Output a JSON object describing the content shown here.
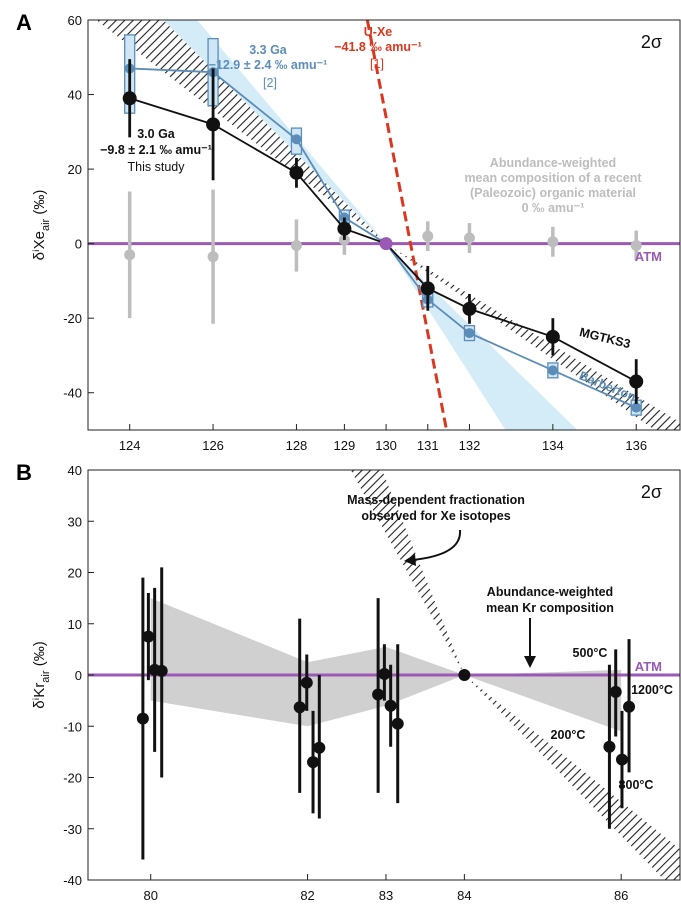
{
  "chart_data": [
    {
      "panel": "A",
      "type": "line",
      "significance": "2σ",
      "ylabel": "δⁱXe",
      "ylabel_sub": "air",
      "ylabel_unit": "(‰)",
      "xlim": [
        123,
        137.2
      ],
      "ylim": [
        -50,
        60
      ],
      "x_ticks": [
        124,
        126,
        128,
        129,
        130,
        131,
        132,
        134,
        136
      ],
      "y_ticks": [
        60,
        40,
        20,
        0,
        -20,
        -40
      ],
      "x_positions": {
        "124": 124,
        "126": 126,
        "128": 128,
        "129": 129.15,
        "130": 130.15,
        "131": 131.15,
        "132": 132.15,
        "134": 134.15,
        "136": 136.15
      },
      "grid": false,
      "colors": {
        "black": "#111111",
        "blue": "#5b8db8",
        "gray": "#bdbdbd",
        "purple": "#9b59b6",
        "red": "#d9371e",
        "blue_band": "#cde8f7"
      },
      "series": [
        {
          "name": "MGTKS3",
          "color": "#111111",
          "points": [
            {
              "x": "124",
              "y": 39,
              "err": 10.5
            },
            {
              "x": "126",
              "y": 32,
              "err": 15
            },
            {
              "x": "128",
              "y": 19,
              "err": 4
            },
            {
              "x": "129",
              "y": 4,
              "err": 3
            },
            {
              "x": "130",
              "y": 0,
              "err": 0
            },
            {
              "x": "131",
              "y": -12,
              "err": 6
            },
            {
              "x": "132",
              "y": -17.5,
              "err": 4
            },
            {
              "x": "134",
              "y": -25,
              "err": 5
            },
            {
              "x": "136",
              "y": -37,
              "err": 6
            }
          ]
        },
        {
          "name": "Barberton",
          "color": "#5b8db8",
          "points": [
            {
              "x": "124",
              "y": 47,
              "box": [
                35,
                56
              ]
            },
            {
              "x": "126",
              "y": 46,
              "box": [
                37,
                55
              ]
            },
            {
              "x": "128",
              "y": 28,
              "box": [
                24,
                31
              ]
            },
            {
              "x": "129",
              "y": 7,
              "box": [
                5.5,
                9
              ]
            },
            {
              "x": "130",
              "y": 0,
              "box": [
                0,
                0
              ]
            },
            {
              "x": "131",
              "y": -15,
              "box": [
                -17,
                -13
              ]
            },
            {
              "x": "132",
              "y": -24,
              "box": [
                -26,
                -22
              ]
            },
            {
              "x": "134",
              "y": -34,
              "box": [
                -36,
                -32
              ]
            },
            {
              "x": "136",
              "y": -44,
              "box": [
                -46,
                -42
              ]
            }
          ]
        },
        {
          "name": "organic",
          "color": "#bdbdbd",
          "points": [
            {
              "x": "124",
              "y": -3,
              "err": 17
            },
            {
              "x": "126",
              "y": -3.5,
              "err": 18
            },
            {
              "x": "128",
              "y": -0.5,
              "err": 7
            },
            {
              "x": "129",
              "y": 1,
              "err": 4
            },
            {
              "x": "131",
              "y": 2,
              "err": 4
            },
            {
              "x": "132",
              "y": 1.5,
              "err": 4
            },
            {
              "x": "134",
              "y": 0.5,
              "err": 4
            },
            {
              "x": "136",
              "y": -0.5,
              "err": 4
            }
          ]
        }
      ],
      "atm_label": "ATM",
      "ann_uxe": {
        "line1": "U-Xe",
        "line2": "−41.8 ‰ amu⁻¹",
        "line3": "[1]"
      },
      "ann_33": {
        "line1": "3.3 Ga",
        "line2": "−12.9 ± 2.4 ‰ amu⁻¹",
        "line3": "[2]"
      },
      "ann_30": {
        "line1": "3.0 Ga",
        "line2": "−9.8 ± 2.1 ‰ amu⁻¹",
        "line3": "This study"
      },
      "ann_org": {
        "line1": "Abundance-weighted",
        "line2": "mean composition of a recent",
        "line3": "(Paleozoic) organic material",
        "line4": "0 ‰ amu⁻¹"
      },
      "label_mgtks3": "MGTKS3",
      "label_barberton": "Barberton"
    },
    {
      "panel": "B",
      "type": "scatter",
      "significance": "2σ",
      "ylabel": "δⁱKr",
      "ylabel_sub": "air",
      "ylabel_unit": "(‰)",
      "xlim": [
        79.2,
        86.75
      ],
      "ylim": [
        -40,
        40
      ],
      "x_ticks": [
        80,
        82,
        83,
        84,
        86
      ],
      "y_ticks": [
        40,
        30,
        20,
        10,
        0,
        -10,
        -20,
        -30,
        -40
      ],
      "grid": false,
      "points": [
        {
          "x": 79.9,
          "y": -8.5,
          "lo": -36,
          "hi": 19
        },
        {
          "x": 79.97,
          "y": 7.5,
          "lo": -1,
          "hi": 16
        },
        {
          "x": 80.05,
          "y": 1,
          "lo": -15,
          "hi": 17
        },
        {
          "x": 80.14,
          "y": 0.8,
          "lo": -20,
          "hi": 21
        },
        {
          "x": 81.9,
          "y": -6.3,
          "lo": -23,
          "hi": 11
        },
        {
          "x": 81.99,
          "y": -1.5,
          "lo": -7,
          "hi": 4
        },
        {
          "x": 82.07,
          "y": -17,
          "lo": -27,
          "hi": -7
        },
        {
          "x": 82.15,
          "y": -14.2,
          "lo": -28,
          "hi": 0
        },
        {
          "x": 82.9,
          "y": -3.8,
          "lo": -23,
          "hi": 15
        },
        {
          "x": 82.98,
          "y": 0.2,
          "lo": -5,
          "hi": 6
        },
        {
          "x": 83.06,
          "y": -6,
          "lo": -14,
          "hi": 2
        },
        {
          "x": 83.15,
          "y": -9.5,
          "lo": -25,
          "hi": 6
        },
        {
          "x": 84,
          "y": 0,
          "lo": 0,
          "hi": 0
        },
        {
          "x": 85.85,
          "y": -14,
          "lo": -30,
          "hi": 2
        },
        {
          "x": 85.93,
          "y": -3.3,
          "lo": -12,
          "hi": 5
        },
        {
          "x": 86.01,
          "y": -16.5,
          "lo": -26,
          "hi": -7
        },
        {
          "x": 86.1,
          "y": -6.2,
          "lo": -19,
          "hi": 7
        }
      ],
      "atm_label": "ATM",
      "ann_mdf": {
        "line1": "Mass-dependent fractionation",
        "line2": "observed for Xe isotopes"
      },
      "ann_kr": {
        "line1": "Abundance-weighted",
        "line2": "mean Kr composition"
      },
      "temps": {
        "t500": "500°C",
        "t1200": "1200°C",
        "t200": "200°C",
        "t800": "800°C"
      }
    }
  ]
}
